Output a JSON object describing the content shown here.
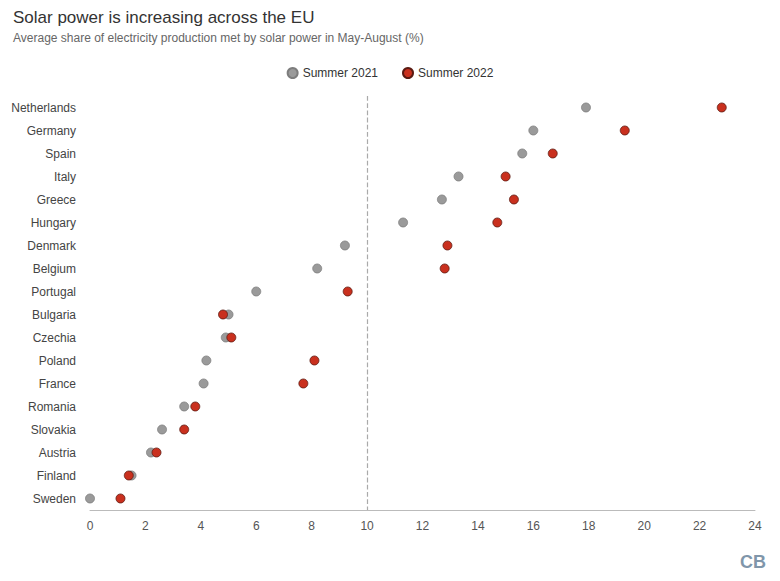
{
  "chart_data": {
    "type": "scatter",
    "title": "Solar power is increasing across the EU",
    "subtitle": "Average share of electricity production met by solar power in May-August (%)",
    "categories": [
      "Netherlands",
      "Germany",
      "Spain",
      "Italy",
      "Greece",
      "Hungary",
      "Denmark",
      "Belgium",
      "Portugal",
      "Bulgaria",
      "Czechia",
      "Poland",
      "France",
      "Romania",
      "Slovakia",
      "Austria",
      "Finland",
      "Sweden"
    ],
    "series": [
      {
        "name": "Summer 2021",
        "color": "#9a9a9a",
        "values": [
          17.9,
          16.0,
          15.6,
          13.3,
          12.7,
          11.3,
          9.2,
          8.2,
          6.0,
          5.0,
          4.9,
          4.2,
          4.1,
          3.4,
          2.6,
          2.2,
          1.5,
          0.0
        ]
      },
      {
        "name": "Summer 2022",
        "color": "#c9301e",
        "values": [
          22.8,
          19.3,
          16.7,
          15.0,
          15.3,
          14.7,
          12.9,
          12.8,
          9.3,
          4.8,
          5.1,
          8.1,
          7.7,
          3.8,
          3.4,
          2.4,
          1.4,
          1.1
        ]
      }
    ],
    "xlim": [
      0,
      24
    ],
    "xticks": [
      0,
      2,
      4,
      6,
      8,
      10,
      12,
      14,
      16,
      18,
      20,
      22,
      24
    ],
    "reference_line": 10,
    "grid": false,
    "legend": "top",
    "marker": "circle",
    "credit": "CB"
  }
}
